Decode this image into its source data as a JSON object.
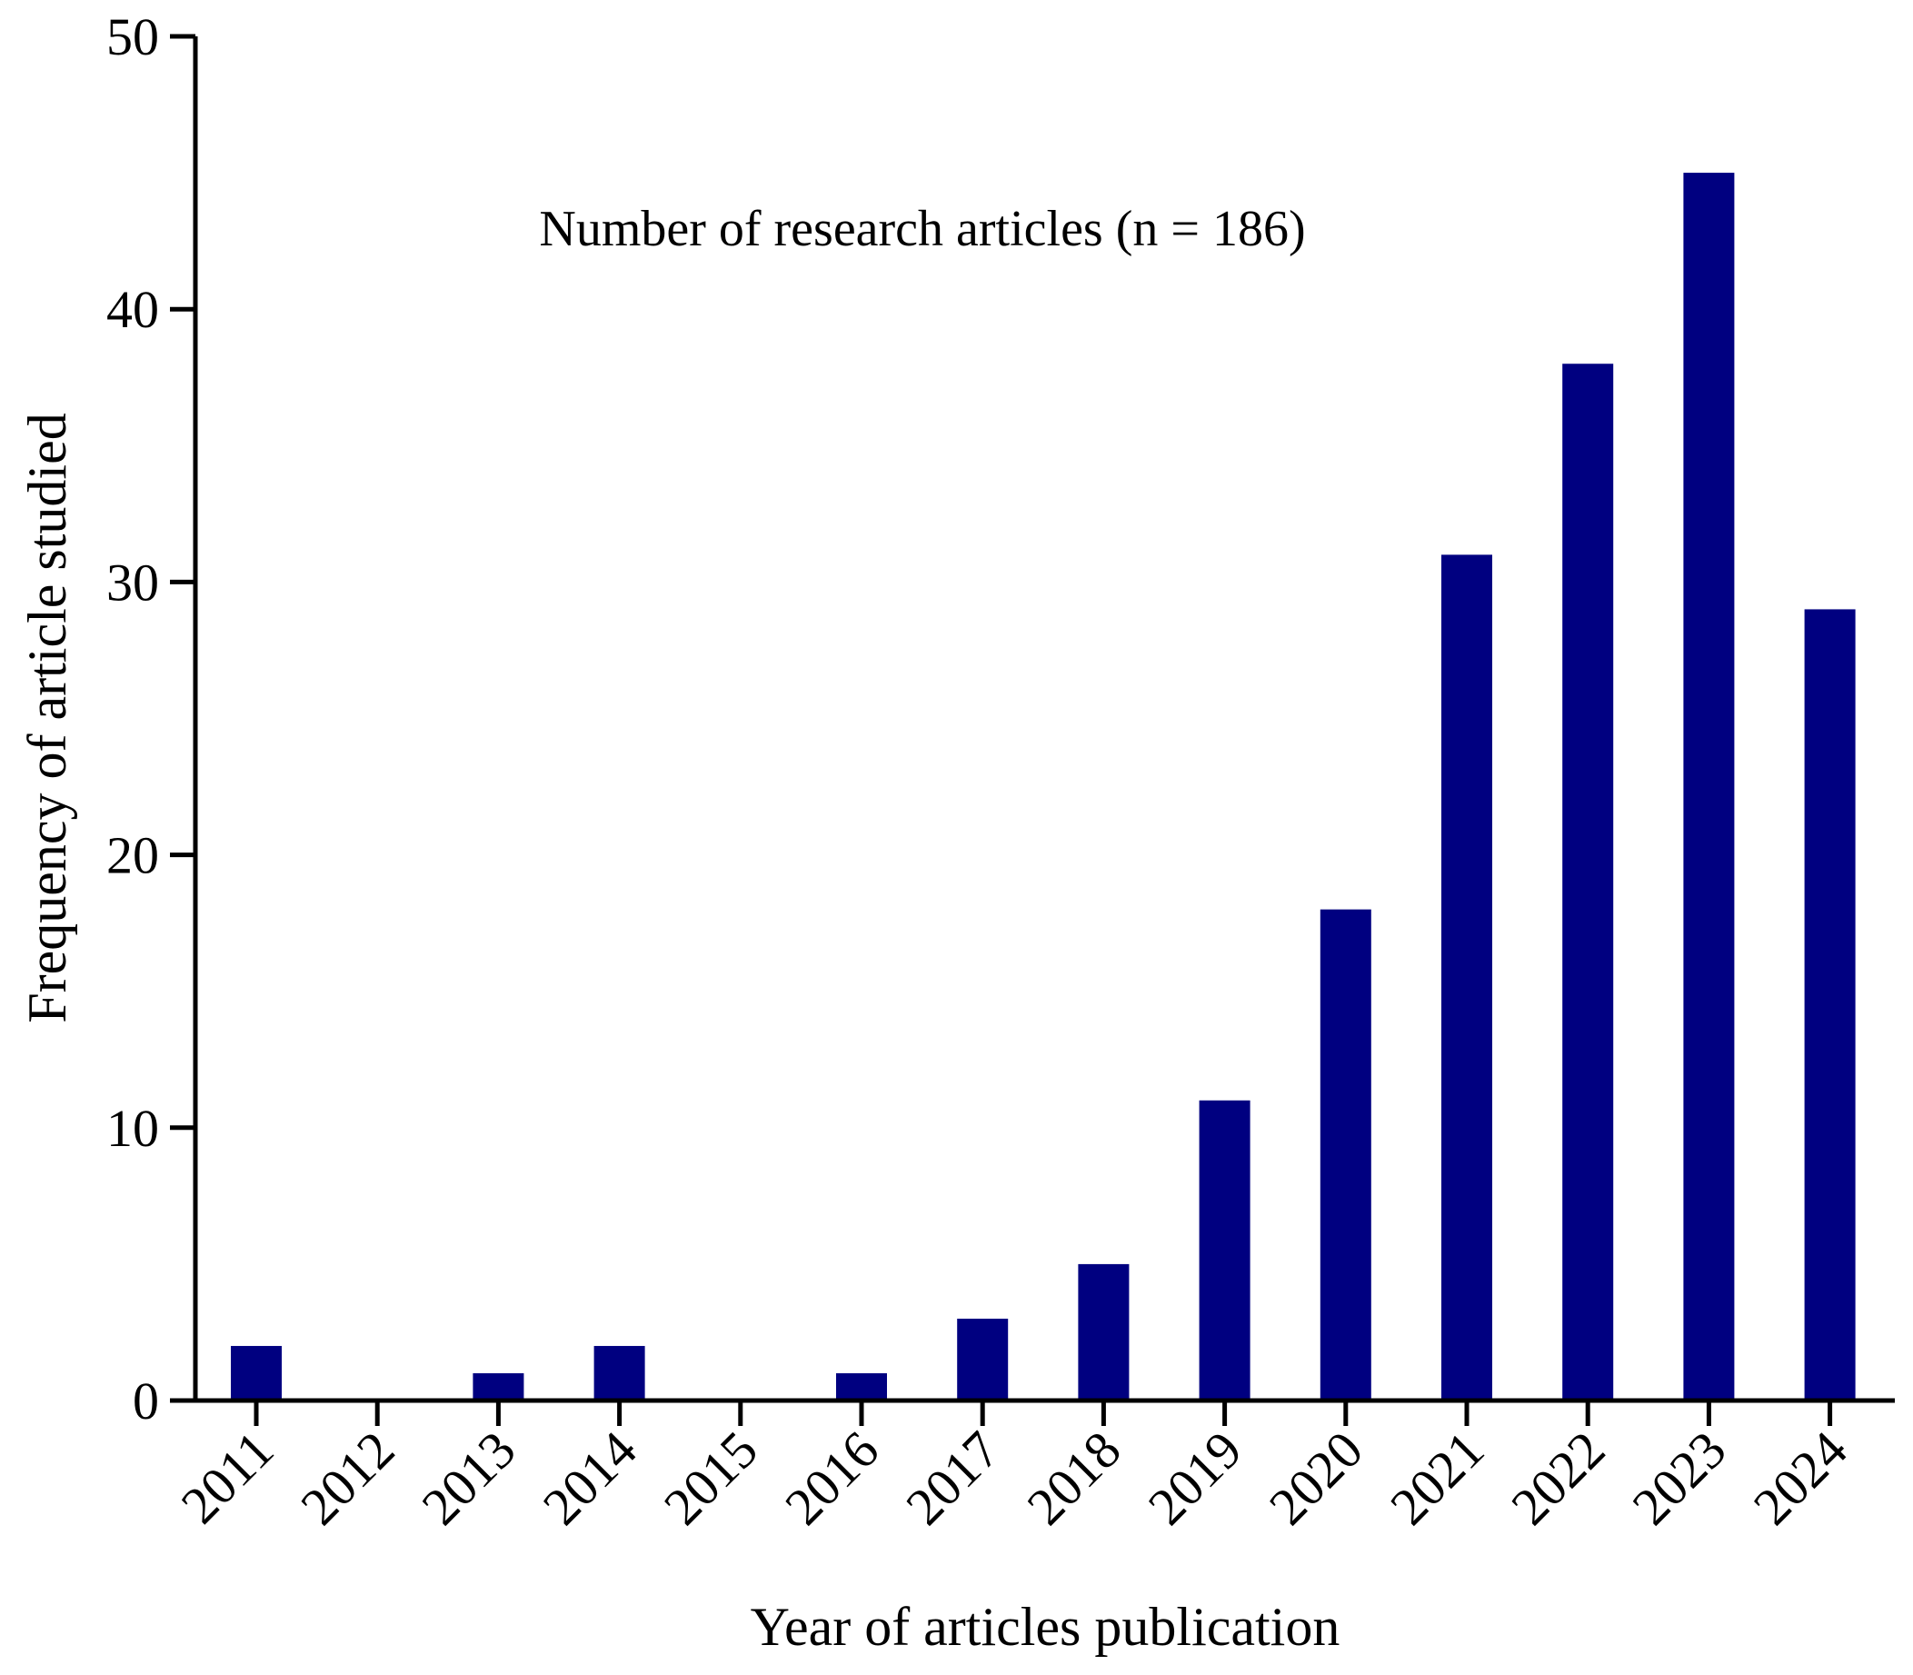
{
  "chart_data": {
    "type": "bar",
    "categories": [
      "2011",
      "2012",
      "2013",
      "2014",
      "2015",
      "2016",
      "2017",
      "2018",
      "2019",
      "2020",
      "2021",
      "2022",
      "2023",
      "2024"
    ],
    "values": [
      2,
      0,
      1,
      2,
      0,
      1,
      3,
      5,
      11,
      18,
      31,
      38,
      45,
      29
    ],
    "title": "",
    "annotation": "Number of research articles (n = 186)",
    "xlabel": "Year of articles publication",
    "ylabel": "Frequency of article studied",
    "ylim": [
      0,
      50
    ],
    "yticks": [
      "0",
      "10",
      "20",
      "30",
      "40",
      "50"
    ],
    "grid": false,
    "legend": "none",
    "bar_color": "#000080"
  }
}
